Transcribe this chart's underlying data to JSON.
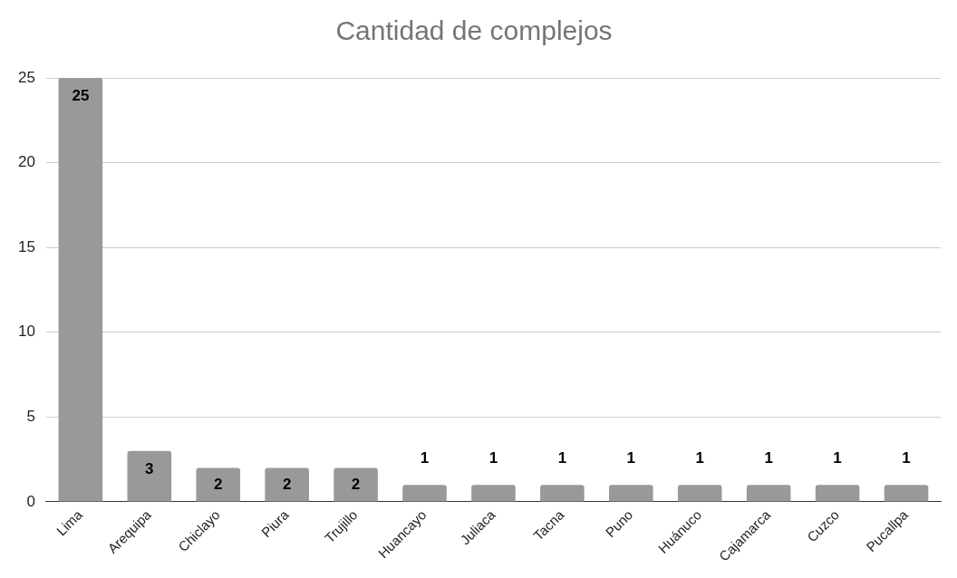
{
  "chart_data": {
    "type": "bar",
    "title": "Cantidad de complejos",
    "categories": [
      "Lima",
      "Arequipa",
      "Chiclayo",
      "Piura",
      "Trujillo",
      "Huancayo",
      "Juliaca",
      "Tacna",
      "Puno",
      "Huánuco",
      "Cajamarca",
      "Cuzco",
      "Pucallpa"
    ],
    "values": [
      25,
      3,
      2,
      2,
      2,
      1,
      1,
      1,
      1,
      1,
      1,
      1,
      1
    ],
    "color": "#999999",
    "ylim": [
      0,
      25
    ],
    "yticks": [
      0,
      5,
      10,
      15,
      20,
      25
    ],
    "grid": "y",
    "data_labels": true,
    "legend": false
  }
}
